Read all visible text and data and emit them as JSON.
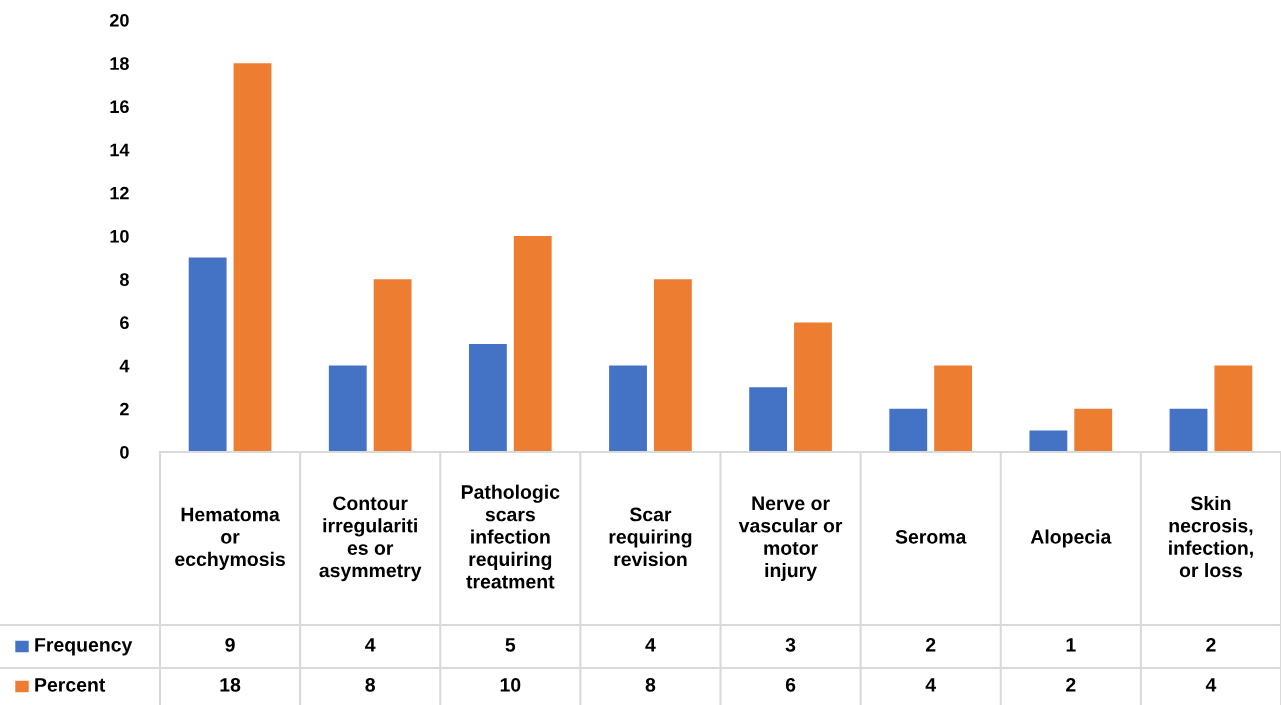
{
  "chart_data": {
    "type": "bar",
    "categories": [
      "Hematoma\nor\necchymosis",
      "Contour\nirregulariti\nes or\nasymmetry",
      "Pathologic\nscars\ninfection\nrequiring\ntreatment",
      "Scar\nrequiring\nrevision",
      "Nerve or\nvascular or\nmotor\ninjury",
      "Seroma",
      "Alopecia",
      "Skin\nnecrosis,\ninfection,\nor loss"
    ],
    "series": [
      {
        "name": "Frequency",
        "color": "#4472c4",
        "values": [
          9,
          4,
          5,
          4,
          3,
          2,
          1,
          2
        ]
      },
      {
        "name": "Percent",
        "color": "#ed7d31",
        "values": [
          18,
          8,
          10,
          8,
          6,
          4,
          2,
          4
        ]
      }
    ],
    "ylim": [
      0,
      20
    ],
    "yticks": [
      0,
      2,
      4,
      6,
      8,
      10,
      12,
      14,
      16,
      18,
      20
    ],
    "data_labels": true,
    "legend": "bottom",
    "grid": false
  }
}
